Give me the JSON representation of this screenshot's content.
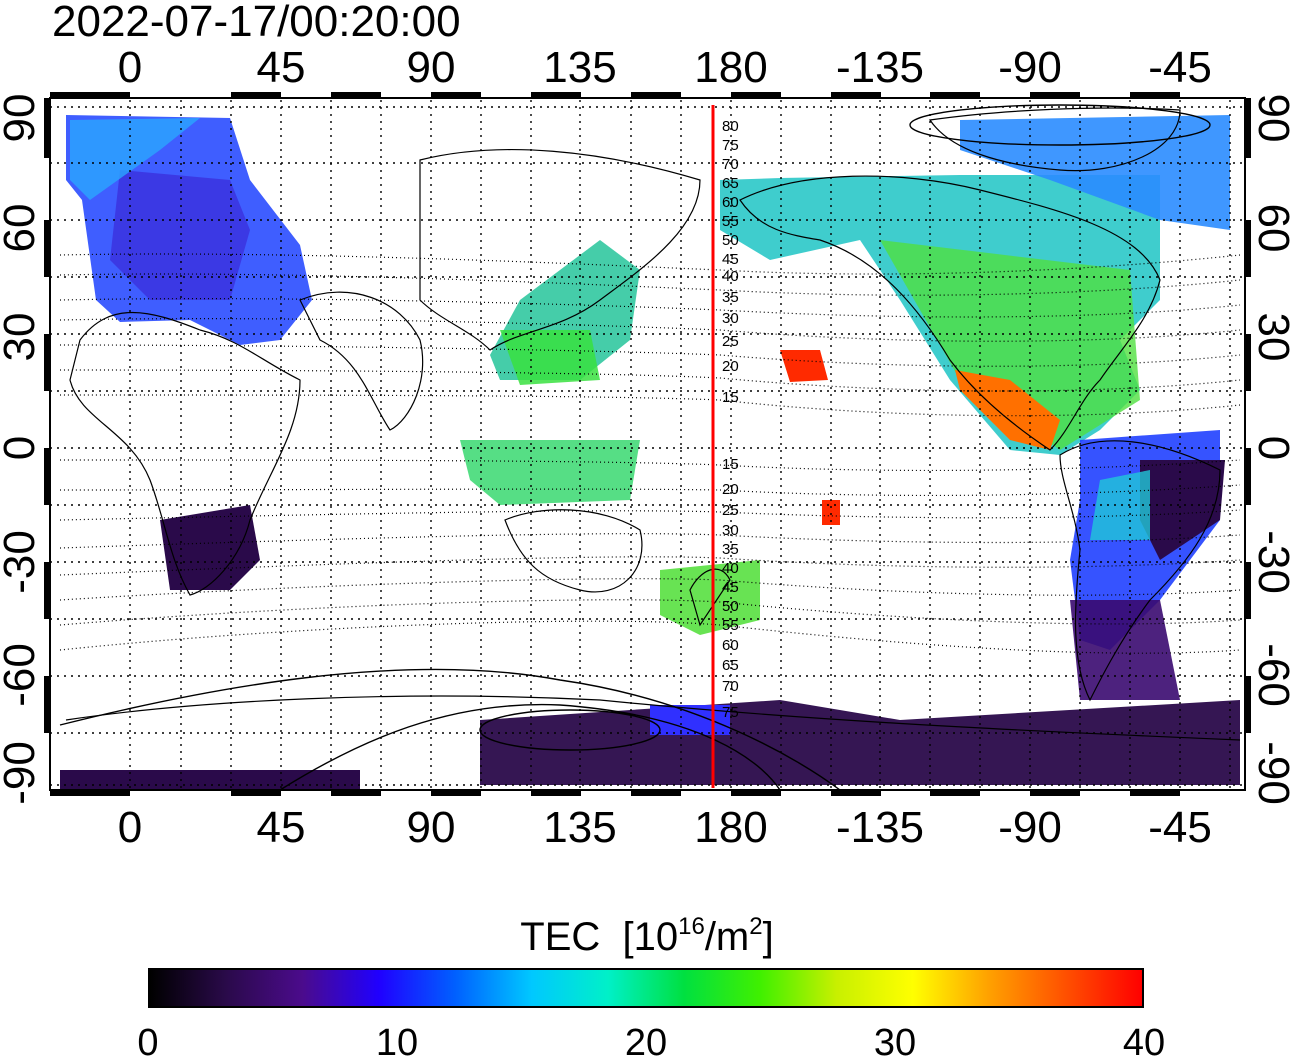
{
  "timestamp": "2022-07-17/00:20:00",
  "map": {
    "top_lon_labels": [
      "0",
      "45",
      "90",
      "135",
      "180",
      "-135",
      "-90",
      "-45"
    ],
    "bottom_lon_labels": [
      "0",
      "45",
      "90",
      "135",
      "180",
      "-135",
      "-90",
      "-45"
    ],
    "left_lat_labels": [
      "90",
      "60",
      "30",
      "0",
      "-30",
      "-60",
      "-90"
    ],
    "right_lat_labels": [
      "90",
      "60",
      "30",
      "0",
      "-30",
      "-60",
      "-90"
    ],
    "magnetic_lat_labels": [
      "80",
      "75",
      "70",
      "65",
      "60",
      "55",
      "50",
      "45",
      "40",
      "35",
      "30",
      "25",
      "20",
      "15",
      "15",
      "20",
      "25",
      "30",
      "35",
      "40",
      "45",
      "50",
      "55",
      "60",
      "65",
      "70",
      "75"
    ],
    "red_line_longitude": 175
  },
  "colorbar": {
    "title": "TEC",
    "unit_prefix": "[10",
    "unit_exp": "16",
    "unit_mid": "/m",
    "unit_exp2": "2",
    "unit_suffix": "]",
    "tick_labels": [
      "0",
      "10",
      "20",
      "30",
      "40"
    ],
    "range": [
      0,
      40
    ],
    "colors": [
      "#000000",
      "#2a0a4a",
      "#4b0b8c",
      "#2000ff",
      "#0060ff",
      "#00c8ff",
      "#00f0c8",
      "#00e040",
      "#40f000",
      "#c8f000",
      "#ffff00",
      "#ffa000",
      "#ff5000",
      "#ff0000"
    ]
  }
}
